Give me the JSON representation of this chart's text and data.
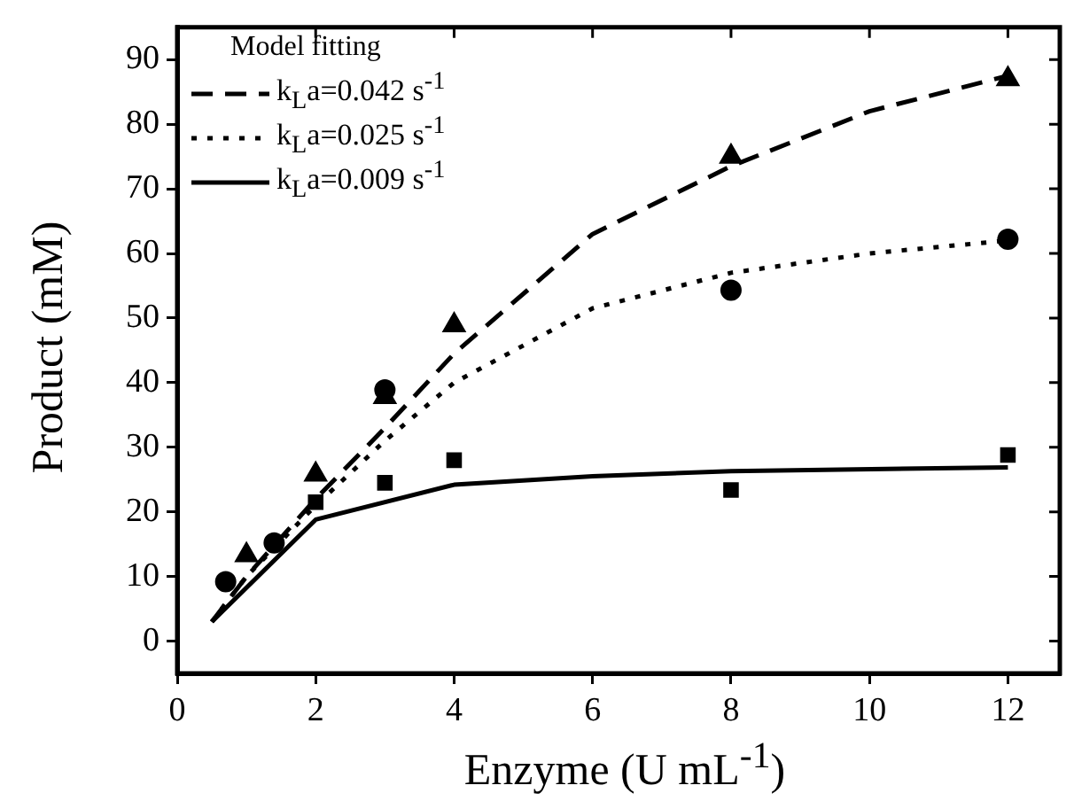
{
  "chart_data": {
    "type": "line",
    "xlabel": "Enzyme (U mL$^{-1}$)",
    "ylabel": "Product (mM)",
    "legend_title": "Model fitting",
    "xlim": [
      0,
      12.75
    ],
    "xticks": [
      0,
      2,
      4,
      6,
      8,
      10,
      12
    ],
    "ylim": [
      -5,
      95
    ],
    "yticks": [
      0,
      10,
      20,
      30,
      40,
      50,
      60,
      70,
      80,
      90
    ],
    "grid": false,
    "legend": "top left",
    "series": [
      {
        "name": "k$_{L}$a=0.042 s$^{-1}$",
        "color": "#000000",
        "line_style": "dashed",
        "marker": "none",
        "x": [
          0.5,
          1,
          2,
          3,
          4,
          6,
          8,
          10,
          12
        ],
        "values": [
          3,
          10,
          22,
          33,
          44.5,
          63,
          73.5,
          82,
          87.5
        ]
      },
      {
        "name": "k$_{L}$a=0.025 s$^{-1}$",
        "color": "#000000",
        "line_style": "dotted",
        "marker": "none",
        "x": [
          0.5,
          1,
          2,
          3,
          4,
          6,
          8,
          10,
          12
        ],
        "values": [
          3,
          10,
          21,
          31,
          40,
          51.5,
          57,
          60,
          62
        ]
      },
      {
        "name": "k$_{L}$a=0.009 s$^{-1}$",
        "color": "#000000",
        "line_style": "solid",
        "marker": "none",
        "x": [
          0.5,
          2,
          4,
          6,
          8,
          12
        ],
        "values": [
          3,
          18.8,
          24.2,
          25.5,
          26.3,
          26.9
        ]
      },
      {
        "type": "scatter",
        "color": "#000000",
        "marker": "triangle",
        "x": [
          1,
          2,
          3,
          4,
          8,
          12
        ],
        "values": [
          13.3,
          25.8,
          37.8,
          48.9,
          75,
          87
        ]
      },
      {
        "type": "scatter",
        "color": "#000000",
        "marker": "circle",
        "x": [
          0.7,
          1.4,
          3,
          8,
          12
        ],
        "values": [
          9.2,
          15.2,
          38.9,
          54.3,
          62.2
        ]
      },
      {
        "type": "scatter",
        "color": "#000000",
        "marker": "square",
        "x": [
          2,
          3,
          4,
          8,
          12
        ],
        "values": [
          21.5,
          24.5,
          28,
          23.4,
          28.8
        ]
      }
    ]
  }
}
